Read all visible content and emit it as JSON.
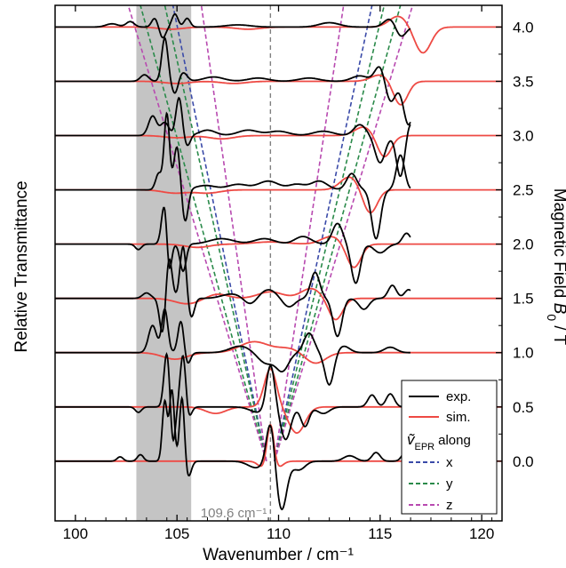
{
  "chart_data": {
    "type": "line",
    "title": "",
    "xlabel": "Wavenumber / cm⁻¹",
    "ylabel_left": "Relative Transmittance",
    "ylabel_right_parts": [
      "Magnetic Field ",
      "B",
      "0",
      " / T"
    ],
    "xlim": [
      99,
      121
    ],
    "ylim": [
      -0.55,
      4.2
    ],
    "x_ticks": [
      100,
      105,
      110,
      115,
      120
    ],
    "x_tick_labels": [
      "100",
      "105",
      "110",
      "115",
      "120"
    ],
    "y_ticks": [
      0.0,
      0.5,
      1.0,
      1.5,
      2.0,
      2.5,
      3.0,
      3.5,
      4.0
    ],
    "y_tick_labels": [
      "0.0",
      "0.5",
      "1.0",
      "1.5",
      "2.0",
      "2.5",
      "3.0",
      "3.5",
      "4.0"
    ],
    "shaded_band": {
      "x0": 103.0,
      "x1": 105.7,
      "color": "#c4c4c4"
    },
    "zero_field_line": {
      "x": 109.6,
      "label": "109.6 cm⁻¹",
      "color": "#808080"
    },
    "fields": [
      0.0,
      0.5,
      1.0,
      1.5,
      2.0,
      2.5,
      3.0,
      3.5,
      4.0
    ],
    "colors": {
      "exp": "#000000",
      "sim": "#ee4a44",
      "x": "#3a4aa8",
      "y": "#2a8a4a",
      "z": "#b84ab0"
    },
    "series": [
      {
        "name": "exp.",
        "role": "experimental spectra",
        "x_range": [
          99.0,
          116.5
        ],
        "peaks": {
          "0.0": [
            [
              102.2,
              0.04,
              0.15
            ],
            [
              103.2,
              0.06,
              0.15
            ],
            [
              104.4,
              0.55,
              0.12
            ],
            [
              104.75,
              0.65,
              0.12
            ],
            [
              105.25,
              0.6,
              0.12
            ],
            [
              105.55,
              -0.15,
              0.15
            ],
            [
              108.9,
              -0.06,
              0.4
            ],
            [
              109.6,
              0.38,
              0.2
            ],
            [
              110.15,
              -0.45,
              0.25
            ],
            [
              111.0,
              -0.08,
              0.3
            ],
            [
              113.5,
              0.05,
              0.3
            ],
            [
              114.8,
              0.08,
              0.2
            ],
            [
              116.3,
              0.1,
              0.2
            ]
          ],
          "0.5": [
            [
              103.1,
              -0.05,
              0.15
            ],
            [
              104.5,
              0.5,
              0.14
            ],
            [
              104.8,
              -0.35,
              0.12
            ],
            [
              105.3,
              0.5,
              0.14
            ],
            [
              105.55,
              -0.12,
              0.15
            ],
            [
              109.0,
              -0.05,
              0.4
            ],
            [
              109.6,
              0.4,
              0.2
            ],
            [
              110.35,
              -0.3,
              0.25
            ],
            [
              111.3,
              -0.18,
              0.2
            ],
            [
              112.2,
              -0.06,
              0.3
            ],
            [
              114.6,
              0.11,
              0.2
            ],
            [
              115.5,
              0.12,
              0.2
            ]
          ],
          "1.0": [
            [
              103.8,
              0.25,
              0.2
            ],
            [
              104.4,
              0.4,
              0.15
            ],
            [
              105.2,
              0.3,
              0.15
            ],
            [
              105.5,
              -0.12,
              0.15
            ],
            [
              108.1,
              0.06,
              0.5
            ],
            [
              109.4,
              -0.1,
              0.4
            ],
            [
              110.2,
              -0.16,
              0.3
            ],
            [
              111.5,
              0.18,
              0.25
            ],
            [
              112.5,
              -0.3,
              0.22
            ],
            [
              113.2,
              0.06,
              0.3
            ],
            [
              115.5,
              0.05,
              0.3
            ]
          ],
          "1.5": [
            [
              103.5,
              0.05,
              0.2
            ],
            [
              104.3,
              -0.35,
              0.15
            ],
            [
              104.6,
              0.4,
              0.15
            ],
            [
              105.3,
              0.48,
              0.15
            ],
            [
              105.7,
              -0.18,
              0.15
            ],
            [
              107.7,
              0.04,
              0.5
            ],
            [
              108.6,
              -0.06,
              0.3
            ],
            [
              109.5,
              0.08,
              0.4
            ],
            [
              110.5,
              -0.08,
              0.3
            ],
            [
              111.8,
              0.24,
              0.22
            ],
            [
              112.9,
              -0.35,
              0.22
            ],
            [
              114.2,
              -0.1,
              0.25
            ],
            [
              115.6,
              0.12,
              0.2
            ],
            [
              116.4,
              0.08,
              0.2
            ]
          ],
          "2.0": [
            [
              103.1,
              -0.05,
              0.15
            ],
            [
              104.4,
              0.4,
              0.15
            ],
            [
              104.6,
              -0.35,
              0.12
            ],
            [
              105.3,
              -0.25,
              0.15
            ],
            [
              107.2,
              0.05,
              0.6
            ],
            [
              109.3,
              0.05,
              0.5
            ],
            [
              111.2,
              0.07,
              0.4
            ],
            [
              112.9,
              0.19,
              0.25
            ],
            [
              113.8,
              -0.36,
              0.22
            ],
            [
              115.0,
              -0.08,
              0.3
            ],
            [
              116.3,
              0.1,
              0.2
            ]
          ],
          "2.5": [
            [
              104.1,
              0.15,
              0.15
            ],
            [
              104.5,
              0.7,
              0.13
            ],
            [
              105.0,
              0.4,
              0.15
            ],
            [
              105.4,
              -0.3,
              0.15
            ],
            [
              106.4,
              0.04,
              0.5
            ],
            [
              108.0,
              0.05,
              0.5
            ],
            [
              109.5,
              0.08,
              0.5
            ],
            [
              110.9,
              0.05,
              0.4
            ],
            [
              112.0,
              0.08,
              0.4
            ],
            [
              113.6,
              0.15,
              0.25
            ],
            [
              114.8,
              -0.45,
              0.22
            ],
            [
              116.0,
              0.32,
              0.2
            ]
          ],
          "3.0": [
            [
              103.8,
              0.18,
              0.2
            ],
            [
              104.4,
              0.12,
              0.2
            ],
            [
              105.1,
              0.35,
              0.15
            ],
            [
              105.5,
              -0.1,
              0.15
            ],
            [
              106.5,
              0.05,
              0.4
            ],
            [
              108.5,
              0.05,
              0.5
            ],
            [
              110.0,
              0.04,
              0.5
            ],
            [
              112.2,
              0.04,
              0.5
            ],
            [
              114.0,
              0.1,
              0.3
            ],
            [
              115.0,
              -0.25,
              0.25
            ],
            [
              116.0,
              -0.38,
              0.2
            ],
            [
              116.5,
              0.12,
              0.2
            ]
          ],
          "3.5": [
            [
              103.4,
              0.06,
              0.2
            ],
            [
              104.4,
              0.4,
              0.15
            ],
            [
              104.9,
              -0.12,
              0.15
            ],
            [
              105.3,
              0.08,
              0.2
            ],
            [
              106.8,
              0.04,
              0.5
            ],
            [
              109.0,
              0.03,
              0.5
            ],
            [
              111.5,
              0.03,
              0.5
            ],
            [
              114.0,
              0.05,
              0.4
            ],
            [
              115.0,
              0.15,
              0.25
            ],
            [
              115.5,
              -0.2,
              0.25
            ],
            [
              116.4,
              -0.4,
              0.25
            ]
          ],
          "4.0": [
            [
              101.8,
              0.03,
              0.3
            ],
            [
              102.7,
              0.05,
              0.2
            ],
            [
              103.9,
              0.08,
              0.15
            ],
            [
              104.3,
              -0.1,
              0.15
            ],
            [
              104.9,
              0.12,
              0.15
            ],
            [
              105.5,
              0.08,
              0.15
            ],
            [
              108.0,
              0.02,
              0.6
            ],
            [
              112.5,
              0.04,
              0.5
            ],
            [
              115.5,
              0.08,
              0.3
            ],
            [
              116.0,
              -0.1,
              0.25
            ]
          ]
        }
      },
      {
        "name": "sim.",
        "role": "simulated spectra",
        "x_range": [
          99.0,
          121.0
        ],
        "peaks": {
          "0.0": [
            [
              109.25,
              -0.06,
              0.25
            ],
            [
              109.6,
              0.38,
              0.17
            ],
            [
              109.95,
              -0.06,
              0.25
            ]
          ],
          "0.5": [
            [
              106.9,
              -0.06,
              0.5
            ],
            [
              109.6,
              0.35,
              0.3
            ],
            [
              110.9,
              -0.24,
              0.4
            ]
          ],
          "1.0": [
            [
              104.9,
              -0.06,
              0.6
            ],
            [
              108.8,
              0.1,
              0.7
            ],
            [
              110.5,
              0.04,
              0.6
            ],
            [
              111.8,
              -0.1,
              0.5
            ]
          ],
          "1.5": [
            [
              105.5,
              -0.05,
              0.6
            ],
            [
              107.0,
              0.04,
              0.5
            ],
            [
              109.6,
              0.06,
              0.6
            ],
            [
              111.6,
              0.09,
              0.5
            ],
            [
              112.8,
              -0.2,
              0.35
            ]
          ],
          "2.0": [
            [
              106.0,
              -0.03,
              0.6
            ],
            [
              109.6,
              0.02,
              0.8
            ],
            [
              112.6,
              0.07,
              0.5
            ],
            [
              113.7,
              -0.22,
              0.35
            ]
          ],
          "2.5": [
            [
              104.9,
              -0.03,
              0.6
            ],
            [
              106.5,
              -0.03,
              0.6
            ],
            [
              113.5,
              0.12,
              0.45
            ],
            [
              114.5,
              -0.22,
              0.35
            ]
          ],
          "3.0": [
            [
              105.0,
              -0.02,
              0.6
            ],
            [
              107.2,
              -0.03,
              0.6
            ],
            [
              114.2,
              0.08,
              0.45
            ],
            [
              115.2,
              -0.2,
              0.35
            ]
          ],
          "3.5": [
            [
              105.0,
              -0.02,
              0.6
            ],
            [
              107.8,
              -0.02,
              0.6
            ],
            [
              115.0,
              0.06,
              0.45
            ],
            [
              116.0,
              -0.22,
              0.35
            ]
          ],
          "4.0": [
            [
              104.7,
              -0.02,
              0.6
            ],
            [
              108.5,
              -0.02,
              0.6
            ],
            [
              115.9,
              0.1,
              0.45
            ],
            [
              117.1,
              -0.24,
              0.4
            ]
          ]
        }
      }
    ],
    "epr_lines": [
      {
        "name": "x",
        "points_left": [
          [
            109.4,
            0.0
          ],
          [
            104.8,
            4.2
          ]
        ],
        "points_right": [
          [
            109.8,
            0.0
          ],
          [
            114.6,
            4.2
          ]
        ]
      },
      {
        "name": "y",
        "points_left": [
          [
            109.4,
            0.0
          ],
          [
            103.2,
            4.2
          ]
        ],
        "points_right": [
          [
            109.8,
            0.0
          ],
          [
            115.2,
            4.2
          ]
        ]
      },
      {
        "name": "y",
        "points_left": [
          [
            109.4,
            0.0
          ],
          [
            104.4,
            4.2
          ]
        ],
        "points_right": [
          [
            109.8,
            0.0
          ],
          [
            116.0,
            4.2
          ]
        ]
      },
      {
        "name": "z",
        "points_left": [
          [
            109.4,
            0.0
          ],
          [
            106.2,
            4.2
          ]
        ],
        "points_right": [
          [
            109.8,
            0.0
          ],
          [
            113.2,
            4.2
          ]
        ]
      },
      {
        "name": "z",
        "points_left": [
          [
            109.4,
            0.0
          ],
          [
            102.6,
            4.2
          ]
        ],
        "points_right": [
          [
            109.8,
            0.0
          ],
          [
            116.6,
            4.2
          ]
        ]
      }
    ],
    "legend": {
      "position": "bottom-right",
      "entries": [
        {
          "label": "exp.",
          "style": "solid",
          "color_key": "exp"
        },
        {
          "label": "sim.",
          "style": "solid",
          "color_key": "sim"
        },
        {
          "label": "along",
          "style": "header",
          "symbol": "ṽ",
          "subscript": "EPR"
        },
        {
          "label": "x",
          "style": "dashed",
          "color_key": "x"
        },
        {
          "label": "y",
          "style": "dashed",
          "color_key": "y"
        },
        {
          "label": "z",
          "style": "dashed",
          "color_key": "z"
        }
      ]
    }
  }
}
